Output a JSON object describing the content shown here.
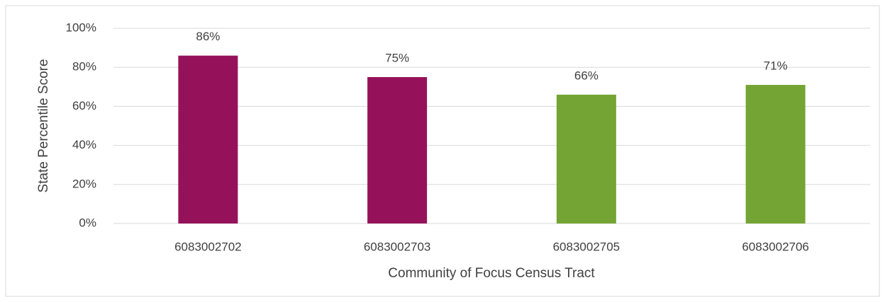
{
  "chart_data": {
    "type": "bar",
    "categories": [
      "6083002702",
      "6083002703",
      "6083002705",
      "6083002706"
    ],
    "values": [
      86,
      75,
      66,
      71
    ],
    "value_labels": [
      "86%",
      "75%",
      "66%",
      "71%"
    ],
    "colors": [
      "#95125b",
      "#95125b",
      "#74a534",
      "#74a534"
    ],
    "ylim": [
      0,
      100
    ],
    "yticks": [
      {
        "value": 0,
        "label": "0%"
      },
      {
        "value": 20,
        "label": "20%"
      },
      {
        "value": 40,
        "label": "40%"
      },
      {
        "value": 60,
        "label": "60%"
      },
      {
        "value": 80,
        "label": "80%"
      },
      {
        "value": 100,
        "label": "100%"
      }
    ],
    "grid": true,
    "ylabel": "State Percentile Score",
    "xlabel": "Community of Focus Census Tract"
  }
}
